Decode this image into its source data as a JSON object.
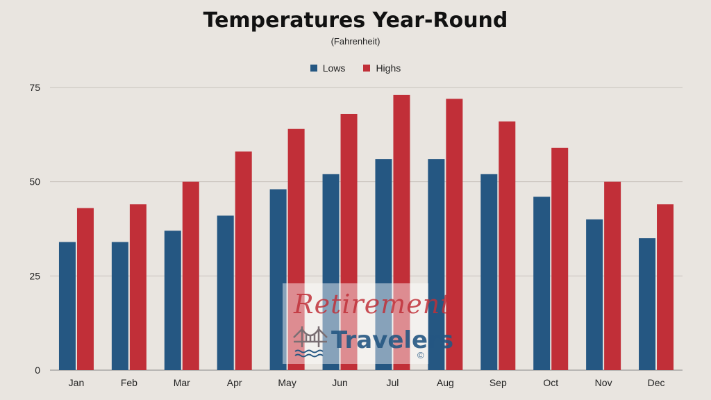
{
  "chart_data": {
    "type": "bar",
    "title": "Temperatures Year-Round",
    "subtitle": "(Fahrenheit)",
    "categories": [
      "Jan",
      "Feb",
      "Mar",
      "Apr",
      "May",
      "Jun",
      "Jul",
      "Aug",
      "Sep",
      "Oct",
      "Nov",
      "Dec"
    ],
    "series": [
      {
        "name": "Lows",
        "color": "#255782",
        "values": [
          34,
          34,
          37,
          41,
          48,
          52,
          56,
          56,
          52,
          46,
          40,
          35
        ]
      },
      {
        "name": "Highs",
        "color": "#c12f38",
        "values": [
          43,
          44,
          50,
          58,
          64,
          68,
          73,
          72,
          66,
          59,
          50,
          44
        ]
      }
    ],
    "yticks": [
      0,
      25,
      50,
      75
    ],
    "ylim": [
      0,
      75
    ],
    "grid": true,
    "legend_position": "top-center"
  },
  "watermark": {
    "line1": "Retirement",
    "line2": "Travelers",
    "copyright": "©"
  }
}
